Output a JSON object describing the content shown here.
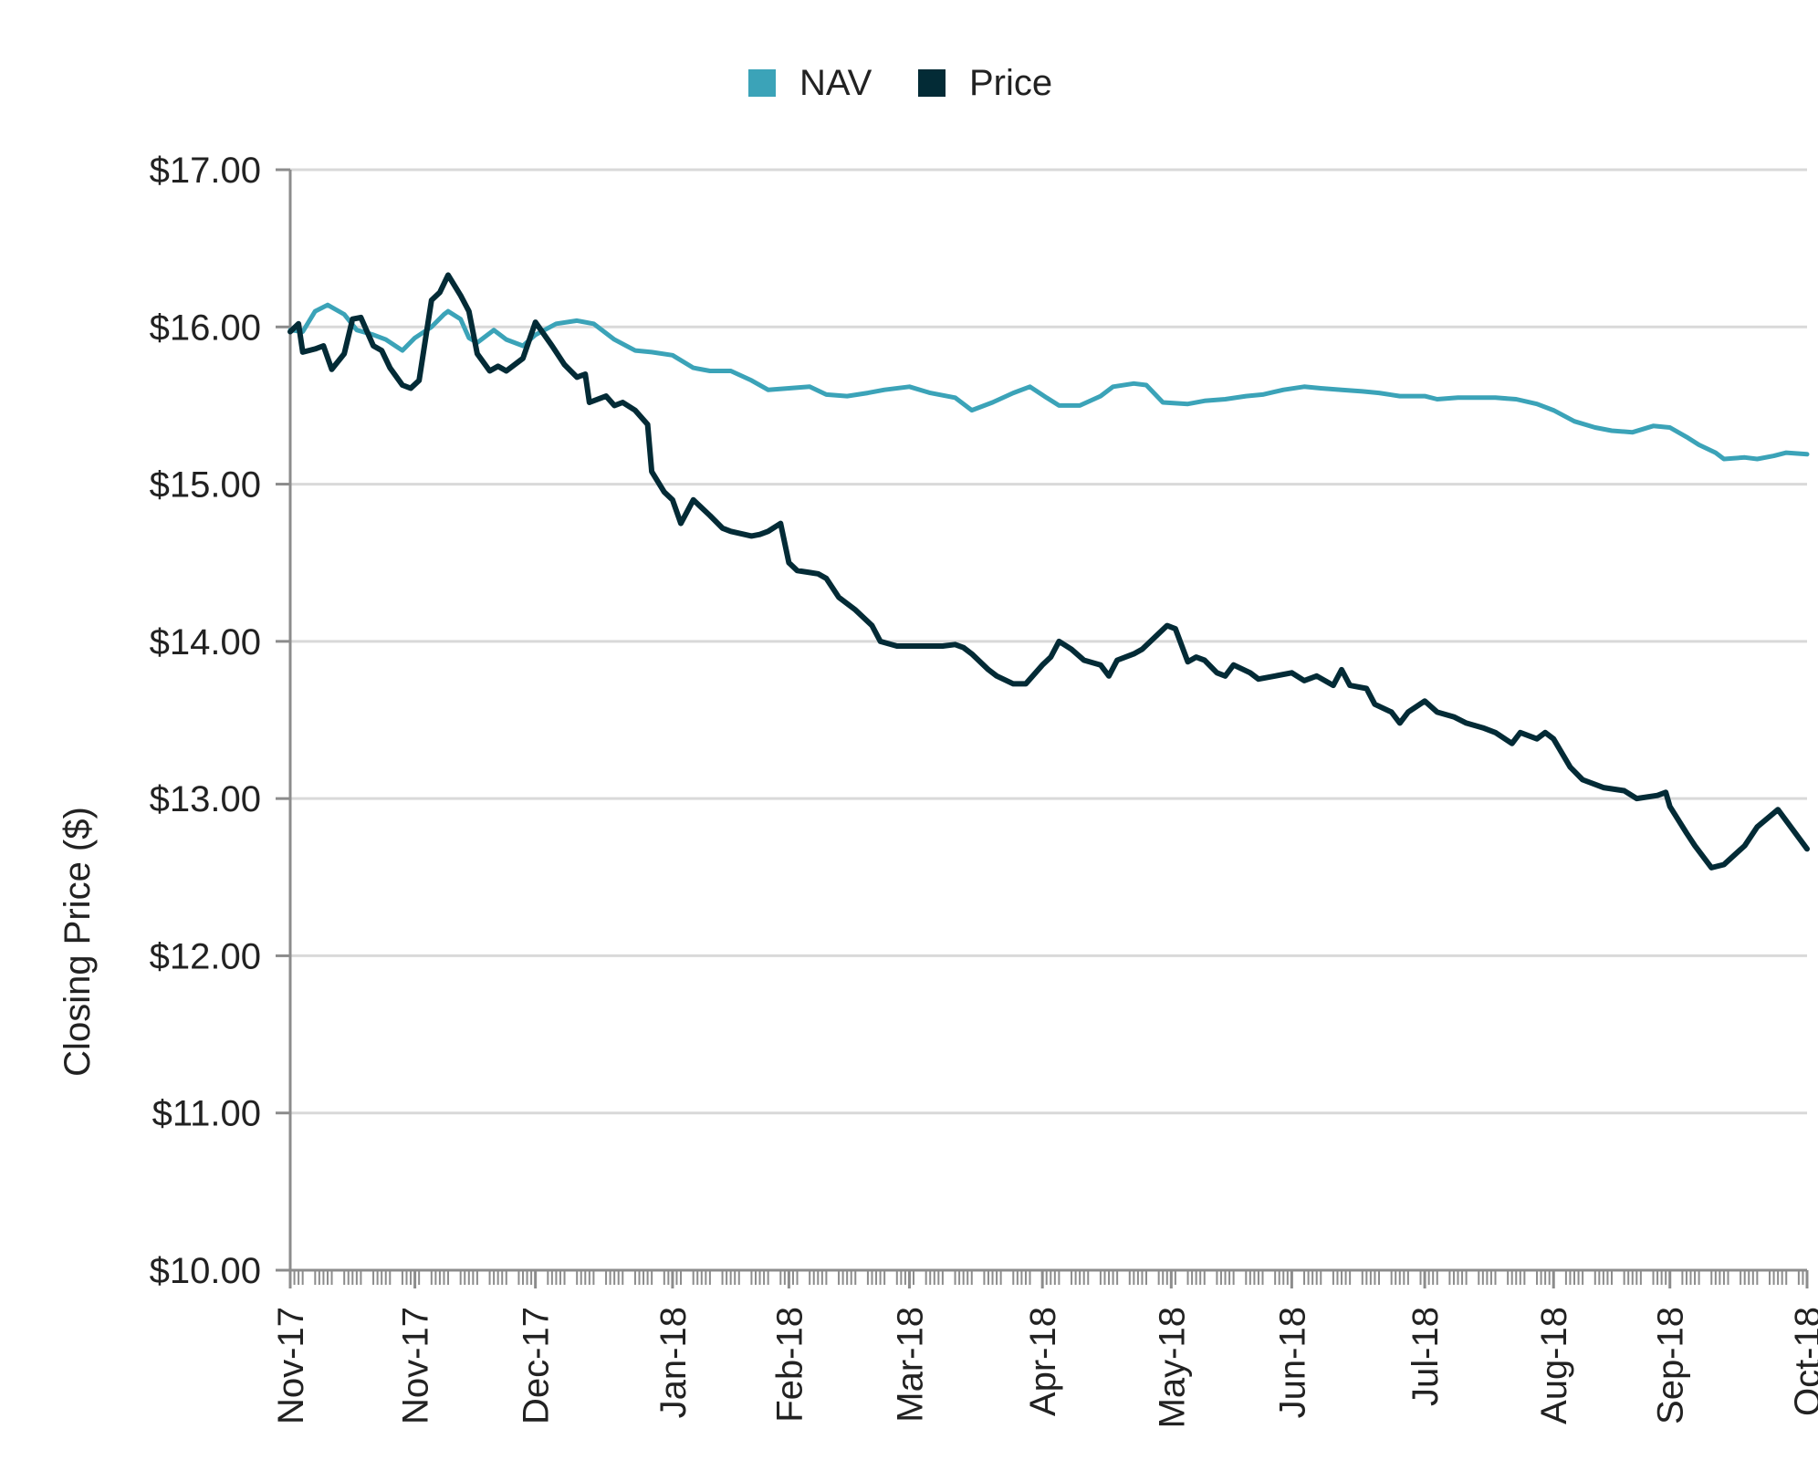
{
  "chart_data": {
    "type": "line",
    "title": "",
    "xlabel": "",
    "ylabel": "Closing Price ($)",
    "ylim": [
      10,
      17
    ],
    "y_ticks": [
      "$10.00",
      "$11.00",
      "$12.00",
      "$13.00",
      "$14.00",
      "$15.00",
      "$16.00",
      "$17.00"
    ],
    "y_tick_values": [
      10,
      11,
      12,
      13,
      14,
      15,
      16,
      17
    ],
    "x_range": [
      "2017-10-31",
      "2018-10-31"
    ],
    "x_ticks": [
      "Nov-17",
      "Nov-17",
      "Dec-17",
      "Jan-18",
      "Feb-18",
      "Mar-18",
      "Apr-18",
      "May-18",
      "Jun-18",
      "Jul-18",
      "Aug-18",
      "Sep-18",
      "Oct-18"
    ],
    "x_tick_dates": [
      "2017-10-31",
      "2017-11-30",
      "2017-12-29",
      "2018-01-31",
      "2018-02-28",
      "2018-03-29",
      "2018-04-30",
      "2018-05-31",
      "2018-06-29",
      "2018-07-31",
      "2018-08-31",
      "2018-09-28",
      "2018-10-31"
    ],
    "grid": "horizontal",
    "legend": "top-center",
    "colors": {
      "NAV": "#3ba3b8",
      "Price": "#032b36",
      "grid": "#d9d9d9",
      "axis": "#8c8c8c"
    },
    "series": [
      {
        "name": "NAV",
        "points": [
          [
            "2017-10-31",
            15.98
          ],
          [
            "2017-11-03",
            15.97
          ],
          [
            "2017-11-06",
            16.1
          ],
          [
            "2017-11-09",
            16.14
          ],
          [
            "2017-11-13",
            16.08
          ],
          [
            "2017-11-16",
            15.98
          ],
          [
            "2017-11-20",
            15.95
          ],
          [
            "2017-11-23",
            15.92
          ],
          [
            "2017-11-27",
            15.85
          ],
          [
            "2017-11-30",
            15.93
          ],
          [
            "2017-12-04",
            16.0
          ],
          [
            "2017-12-07",
            16.08
          ],
          [
            "2017-12-08",
            16.1
          ],
          [
            "2017-12-11",
            16.05
          ],
          [
            "2017-12-13",
            15.93
          ],
          [
            "2017-12-15",
            15.9
          ],
          [
            "2017-12-19",
            15.98
          ],
          [
            "2017-12-22",
            15.92
          ],
          [
            "2017-12-26",
            15.88
          ],
          [
            "2017-12-29",
            15.95
          ],
          [
            "2018-01-03",
            16.02
          ],
          [
            "2018-01-08",
            16.04
          ],
          [
            "2018-01-12",
            16.02
          ],
          [
            "2018-01-17",
            15.92
          ],
          [
            "2018-01-22",
            15.85
          ],
          [
            "2018-01-26",
            15.84
          ],
          [
            "2018-01-31",
            15.82
          ],
          [
            "2018-02-05",
            15.74
          ],
          [
            "2018-02-09",
            15.72
          ],
          [
            "2018-02-14",
            15.72
          ],
          [
            "2018-02-19",
            15.66
          ],
          [
            "2018-02-23",
            15.6
          ],
          [
            "2018-02-28",
            15.61
          ],
          [
            "2018-03-05",
            15.62
          ],
          [
            "2018-03-09",
            15.57
          ],
          [
            "2018-03-14",
            15.56
          ],
          [
            "2018-03-19",
            15.58
          ],
          [
            "2018-03-23",
            15.6
          ],
          [
            "2018-03-29",
            15.62
          ],
          [
            "2018-04-03",
            15.58
          ],
          [
            "2018-04-09",
            15.55
          ],
          [
            "2018-04-13",
            15.47
          ],
          [
            "2018-04-18",
            15.52
          ],
          [
            "2018-04-23",
            15.58
          ],
          [
            "2018-04-27",
            15.62
          ],
          [
            "2018-05-01",
            15.55
          ],
          [
            "2018-05-04",
            15.5
          ],
          [
            "2018-05-09",
            15.5
          ],
          [
            "2018-05-14",
            15.56
          ],
          [
            "2018-05-17",
            15.62
          ],
          [
            "2018-05-22",
            15.64
          ],
          [
            "2018-05-25",
            15.63
          ],
          [
            "2018-05-29",
            15.52
          ],
          [
            "2018-06-04",
            15.51
          ],
          [
            "2018-06-08",
            15.53
          ],
          [
            "2018-06-13",
            15.54
          ],
          [
            "2018-06-18",
            15.56
          ],
          [
            "2018-06-22",
            15.57
          ],
          [
            "2018-06-27",
            15.6
          ],
          [
            "2018-07-02",
            15.62
          ],
          [
            "2018-07-06",
            15.61
          ],
          [
            "2018-07-11",
            15.6
          ],
          [
            "2018-07-16",
            15.59
          ],
          [
            "2018-07-20",
            15.58
          ],
          [
            "2018-07-25",
            15.56
          ],
          [
            "2018-07-31",
            15.56
          ],
          [
            "2018-08-03",
            15.54
          ],
          [
            "2018-08-08",
            15.55
          ],
          [
            "2018-08-13",
            15.55
          ],
          [
            "2018-08-17",
            15.55
          ],
          [
            "2018-08-22",
            15.54
          ],
          [
            "2018-08-27",
            15.51
          ],
          [
            "2018-08-31",
            15.47
          ],
          [
            "2018-09-05",
            15.4
          ],
          [
            "2018-09-10",
            15.36
          ],
          [
            "2018-09-14",
            15.34
          ],
          [
            "2018-09-19",
            15.33
          ],
          [
            "2018-09-24",
            15.37
          ],
          [
            "2018-09-28",
            15.36
          ],
          [
            "2018-10-02",
            15.3
          ],
          [
            "2018-10-05",
            15.25
          ],
          [
            "2018-10-09",
            15.2
          ],
          [
            "2018-10-11",
            15.16
          ],
          [
            "2018-10-16",
            15.17
          ],
          [
            "2018-10-19",
            15.16
          ],
          [
            "2018-10-23",
            15.18
          ],
          [
            "2018-10-26",
            15.2
          ],
          [
            "2018-10-31",
            15.19
          ]
        ]
      },
      {
        "name": "Price",
        "points": [
          [
            "2017-10-31",
            15.97
          ],
          [
            "2017-11-02",
            16.02
          ],
          [
            "2017-11-03",
            15.84
          ],
          [
            "2017-11-06",
            15.86
          ],
          [
            "2017-11-08",
            15.88
          ],
          [
            "2017-11-10",
            15.73
          ],
          [
            "2017-11-13",
            15.83
          ],
          [
            "2017-11-15",
            16.05
          ],
          [
            "2017-11-17",
            16.06
          ],
          [
            "2017-11-20",
            15.88
          ],
          [
            "2017-11-22",
            15.85
          ],
          [
            "2017-11-24",
            15.74
          ],
          [
            "2017-11-27",
            15.63
          ],
          [
            "2017-11-29",
            15.61
          ],
          [
            "2017-12-01",
            15.66
          ],
          [
            "2017-12-04",
            16.17
          ],
          [
            "2017-12-06",
            16.22
          ],
          [
            "2017-12-08",
            16.33
          ],
          [
            "2017-12-11",
            16.2
          ],
          [
            "2017-12-13",
            16.1
          ],
          [
            "2017-12-15",
            15.83
          ],
          [
            "2017-12-18",
            15.72
          ],
          [
            "2017-12-20",
            15.75
          ],
          [
            "2017-12-22",
            15.72
          ],
          [
            "2017-12-26",
            15.8
          ],
          [
            "2017-12-29",
            16.03
          ],
          [
            "2018-01-02",
            15.88
          ],
          [
            "2018-01-05",
            15.76
          ],
          [
            "2018-01-08",
            15.68
          ],
          [
            "2018-01-10",
            15.7
          ],
          [
            "2018-01-11",
            15.52
          ],
          [
            "2018-01-15",
            15.56
          ],
          [
            "2018-01-17",
            15.5
          ],
          [
            "2018-01-19",
            15.52
          ],
          [
            "2018-01-22",
            15.47
          ],
          [
            "2018-01-25",
            15.38
          ],
          [
            "2018-01-26",
            15.08
          ],
          [
            "2018-01-29",
            14.95
          ],
          [
            "2018-01-31",
            14.9
          ],
          [
            "2018-02-02",
            14.75
          ],
          [
            "2018-02-05",
            14.9
          ],
          [
            "2018-02-07",
            14.85
          ],
          [
            "2018-02-09",
            14.8
          ],
          [
            "2018-02-12",
            14.72
          ],
          [
            "2018-02-14",
            14.7
          ],
          [
            "2018-02-19",
            14.67
          ],
          [
            "2018-02-21",
            14.68
          ],
          [
            "2018-02-23",
            14.7
          ],
          [
            "2018-02-26",
            14.75
          ],
          [
            "2018-02-28",
            14.5
          ],
          [
            "2018-03-02",
            14.45
          ],
          [
            "2018-03-07",
            14.43
          ],
          [
            "2018-03-09",
            14.4
          ],
          [
            "2018-03-12",
            14.28
          ],
          [
            "2018-03-16",
            14.2
          ],
          [
            "2018-03-20",
            14.1
          ],
          [
            "2018-03-22",
            14.0
          ],
          [
            "2018-03-26",
            13.97
          ],
          [
            "2018-03-29",
            13.97
          ],
          [
            "2018-04-03",
            13.97
          ],
          [
            "2018-04-06",
            13.97
          ],
          [
            "2018-04-09",
            13.98
          ],
          [
            "2018-04-11",
            13.96
          ],
          [
            "2018-04-13",
            13.92
          ],
          [
            "2018-04-17",
            13.82
          ],
          [
            "2018-04-19",
            13.78
          ],
          [
            "2018-04-23",
            13.73
          ],
          [
            "2018-04-26",
            13.73
          ],
          [
            "2018-04-30",
            13.85
          ],
          [
            "2018-05-02",
            13.9
          ],
          [
            "2018-05-04",
            14.0
          ],
          [
            "2018-05-07",
            13.95
          ],
          [
            "2018-05-10",
            13.88
          ],
          [
            "2018-05-14",
            13.85
          ],
          [
            "2018-05-16",
            13.78
          ],
          [
            "2018-05-18",
            13.88
          ],
          [
            "2018-05-22",
            13.92
          ],
          [
            "2018-05-24",
            13.95
          ],
          [
            "2018-05-28",
            14.05
          ],
          [
            "2018-05-30",
            14.1
          ],
          [
            "2018-06-01",
            14.08
          ],
          [
            "2018-06-04",
            13.87
          ],
          [
            "2018-06-06",
            13.9
          ],
          [
            "2018-06-08",
            13.88
          ],
          [
            "2018-06-11",
            13.8
          ],
          [
            "2018-06-13",
            13.78
          ],
          [
            "2018-06-15",
            13.85
          ],
          [
            "2018-06-19",
            13.8
          ],
          [
            "2018-06-21",
            13.76
          ],
          [
            "2018-06-25",
            13.78
          ],
          [
            "2018-06-29",
            13.8
          ],
          [
            "2018-07-02",
            13.75
          ],
          [
            "2018-07-05",
            13.78
          ],
          [
            "2018-07-09",
            13.72
          ],
          [
            "2018-07-11",
            13.82
          ],
          [
            "2018-07-13",
            13.72
          ],
          [
            "2018-07-17",
            13.7
          ],
          [
            "2018-07-19",
            13.6
          ],
          [
            "2018-07-23",
            13.55
          ],
          [
            "2018-07-25",
            13.48
          ],
          [
            "2018-07-27",
            13.55
          ],
          [
            "2018-07-31",
            13.62
          ],
          [
            "2018-08-03",
            13.55
          ],
          [
            "2018-08-07",
            13.52
          ],
          [
            "2018-08-10",
            13.48
          ],
          [
            "2018-08-14",
            13.45
          ],
          [
            "2018-08-17",
            13.42
          ],
          [
            "2018-08-21",
            13.35
          ],
          [
            "2018-08-23",
            13.42
          ],
          [
            "2018-08-27",
            13.38
          ],
          [
            "2018-08-29",
            13.42
          ],
          [
            "2018-08-31",
            13.38
          ],
          [
            "2018-09-04",
            13.2
          ],
          [
            "2018-09-07",
            13.12
          ],
          [
            "2018-09-12",
            13.07
          ],
          [
            "2018-09-17",
            13.05
          ],
          [
            "2018-09-20",
            13.0
          ],
          [
            "2018-09-25",
            13.02
          ],
          [
            "2018-09-27",
            13.04
          ],
          [
            "2018-09-28",
            12.95
          ],
          [
            "2018-10-02",
            12.78
          ],
          [
            "2018-10-04",
            12.7
          ],
          [
            "2018-10-08",
            12.56
          ],
          [
            "2018-10-11",
            12.58
          ],
          [
            "2018-10-16",
            12.7
          ],
          [
            "2018-10-19",
            12.82
          ],
          [
            "2018-10-24",
            12.93
          ],
          [
            "2018-10-31",
            12.68
          ]
        ]
      }
    ]
  }
}
